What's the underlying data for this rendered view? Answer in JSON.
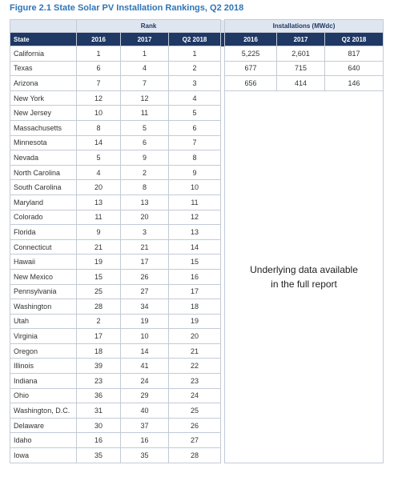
{
  "title": "Figure 2.1 State Solar PV Installation Rankings, Q2 2018",
  "table": {
    "group_headers": [
      "Rank",
      "Installations (MWdc)"
    ],
    "columns": [
      "State",
      "2016",
      "2017",
      "Q2 2018",
      "2016",
      "2017",
      "Q2 2018"
    ],
    "rows": [
      [
        "California",
        1,
        1,
        1,
        "5,225",
        "2,601",
        817
      ],
      [
        "Texas",
        6,
        4,
        2,
        677,
        715,
        640
      ],
      [
        "Arizona",
        7,
        7,
        3,
        656,
        414,
        146
      ],
      [
        "New York",
        12,
        12,
        4
      ],
      [
        "New Jersey",
        10,
        11,
        5
      ],
      [
        "Massachusetts",
        8,
        5,
        6
      ],
      [
        "Minnesota",
        14,
        6,
        7
      ],
      [
        "Nevada",
        5,
        9,
        8
      ],
      [
        "North Carolina",
        4,
        2,
        9
      ],
      [
        "South Carolina",
        20,
        8,
        10
      ],
      [
        "Maryland",
        13,
        13,
        11
      ],
      [
        "Colorado",
        11,
        20,
        12
      ],
      [
        "Florida",
        9,
        3,
        13
      ],
      [
        "Connecticut",
        21,
        21,
        14
      ],
      [
        "Hawaii",
        19,
        17,
        15
      ],
      [
        "New Mexico",
        15,
        26,
        16
      ],
      [
        "Pennsylvania",
        25,
        27,
        17
      ],
      [
        "Washington",
        28,
        34,
        18
      ],
      [
        "Utah",
        2,
        19,
        19
      ],
      [
        "Virginia",
        17,
        10,
        20
      ],
      [
        "Oregon",
        18,
        14,
        21
      ],
      [
        "Illinois",
        39,
        41,
        22
      ],
      [
        "Indiana",
        23,
        24,
        23
      ],
      [
        "Ohio",
        36,
        29,
        24
      ],
      [
        "Washington, D.C.",
        31,
        40,
        25
      ],
      [
        "Delaware",
        30,
        37,
        26
      ],
      [
        "Idaho",
        16,
        16,
        27
      ],
      [
        "Iowa",
        35,
        35,
        28
      ]
    ],
    "note": "Underlying data available in the full report"
  }
}
